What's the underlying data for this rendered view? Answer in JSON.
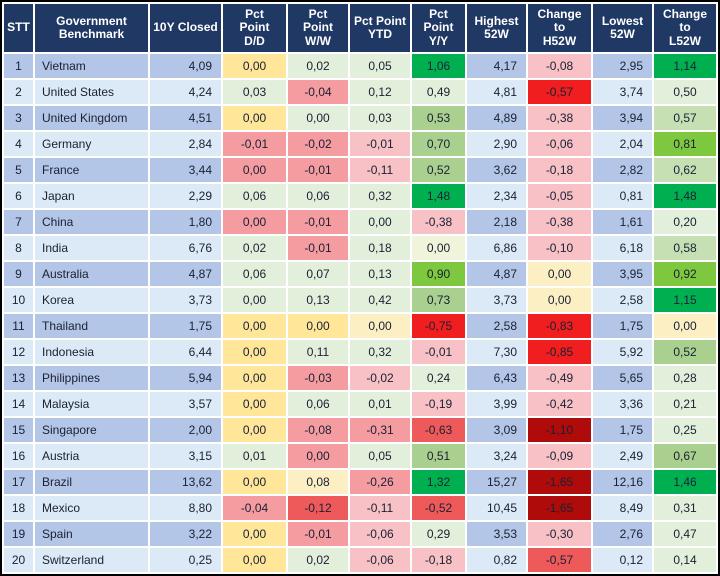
{
  "palette": {
    "header_bg": "#1F3864",
    "header_text": "#FFFFFF",
    "row_odd": "#B3C6E7",
    "row_even": "#DCE9F7",
    "gridline": "#FFFFFF",
    "outer_border": "#000000",
    "text": "#1A2033",
    "yellow": "#FFE699",
    "paleYellow": "#FBEFC3",
    "paleYellowGreen": "#EFF4DB",
    "paleGreen": "#E2EFDA",
    "lightGreen": "#C6E0B4",
    "mediumGreen": "#A9D08E",
    "brightGreen": "#7DC83E",
    "darkGreen": "#00B050",
    "lightPink": "#F7C1C5",
    "midPink": "#F59CA1",
    "medRed": "#EE5A5A",
    "red": "#F01E1E",
    "darkRed": "#B00B0B"
  },
  "chart_data": {
    "type": "table",
    "columns": [
      {
        "key": "stt",
        "label": "STT"
      },
      {
        "key": "name",
        "label": "Government\nBenchmark"
      },
      {
        "key": "closed",
        "label": "10Y Closed"
      },
      {
        "key": "dd",
        "label": "Pct\nPoint\nD/D"
      },
      {
        "key": "ww",
        "label": "Pct\nPoint\nW/W"
      },
      {
        "key": "ytd",
        "label": "Pct Point\nYTD"
      },
      {
        "key": "yy",
        "label": "Pct\nPoint\nY/Y"
      },
      {
        "key": "high",
        "label": "Highest\n52W"
      },
      {
        "key": "chg_h",
        "label": "Change\nto\nH52W"
      },
      {
        "key": "low",
        "label": "Lowest\n52W"
      },
      {
        "key": "chg_l",
        "label": "Change\nto\nL52W"
      }
    ],
    "rows": [
      {
        "stt": "1",
        "name": "Vietnam",
        "closed": "4,09",
        "dd": {
          "v": "0,00",
          "c": "yellow"
        },
        "ww": {
          "v": "0,02",
          "c": "paleGreen"
        },
        "ytd": {
          "v": "0,05",
          "c": "paleGreen"
        },
        "yy": {
          "v": "1,06",
          "c": "darkGreen"
        },
        "high": "4,17",
        "chg_h": {
          "v": "-0,08",
          "c": "lightPink"
        },
        "low": "2,95",
        "chg_l": {
          "v": "1,14",
          "c": "darkGreen"
        }
      },
      {
        "stt": "2",
        "name": "United States",
        "closed": "4,24",
        "dd": {
          "v": "0,03",
          "c": "paleGreen"
        },
        "ww": {
          "v": "-0,04",
          "c": "midPink"
        },
        "ytd": {
          "v": "0,12",
          "c": "paleGreen"
        },
        "yy": {
          "v": "0,49",
          "c": "paleGreen"
        },
        "high": "4,81",
        "chg_h": {
          "v": "-0,57",
          "c": "red"
        },
        "low": "3,74",
        "chg_l": {
          "v": "0,50",
          "c": "paleGreen"
        }
      },
      {
        "stt": "3",
        "name": "United Kingdom",
        "closed": "4,51",
        "dd": {
          "v": "0,00",
          "c": "yellow"
        },
        "ww": {
          "v": "0,00",
          "c": "paleGreen"
        },
        "ytd": {
          "v": "0,03",
          "c": "paleGreen"
        },
        "yy": {
          "v": "0,53",
          "c": "mediumGreen"
        },
        "high": "4,89",
        "chg_h": {
          "v": "-0,38",
          "c": "lightPink"
        },
        "low": "3,94",
        "chg_l": {
          "v": "0,57",
          "c": "lightGreen"
        }
      },
      {
        "stt": "4",
        "name": "Germany",
        "closed": "2,84",
        "dd": {
          "v": "-0,01",
          "c": "midPink"
        },
        "ww": {
          "v": "-0,02",
          "c": "midPink"
        },
        "ytd": {
          "v": "-0,01",
          "c": "lightPink"
        },
        "yy": {
          "v": "0,70",
          "c": "mediumGreen"
        },
        "high": "2,90",
        "chg_h": {
          "v": "-0,06",
          "c": "lightPink"
        },
        "low": "2,04",
        "chg_l": {
          "v": "0,81",
          "c": "brightGreen"
        }
      },
      {
        "stt": "5",
        "name": "France",
        "closed": "3,44",
        "dd": {
          "v": "0,00",
          "c": "midPink"
        },
        "ww": {
          "v": "-0,01",
          "c": "midPink"
        },
        "ytd": {
          "v": "-0,11",
          "c": "lightPink"
        },
        "yy": {
          "v": "0,52",
          "c": "mediumGreen"
        },
        "high": "3,62",
        "chg_h": {
          "v": "-0,18",
          "c": "lightPink"
        },
        "low": "2,82",
        "chg_l": {
          "v": "0,62",
          "c": "lightGreen"
        }
      },
      {
        "stt": "6",
        "name": "Japan",
        "closed": "2,29",
        "dd": {
          "v": "0,06",
          "c": "paleGreen"
        },
        "ww": {
          "v": "0,06",
          "c": "paleGreen"
        },
        "ytd": {
          "v": "0,32",
          "c": "paleGreen"
        },
        "yy": {
          "v": "1,48",
          "c": "darkGreen"
        },
        "high": "2,34",
        "chg_h": {
          "v": "-0,05",
          "c": "lightPink"
        },
        "low": "0,81",
        "chg_l": {
          "v": "1,48",
          "c": "darkGreen"
        }
      },
      {
        "stt": "7",
        "name": "China",
        "closed": "1,80",
        "dd": {
          "v": "0,00",
          "c": "midPink"
        },
        "ww": {
          "v": "-0,01",
          "c": "midPink"
        },
        "ytd": {
          "v": "0,00",
          "c": "paleGreen"
        },
        "yy": {
          "v": "-0,38",
          "c": "lightPink"
        },
        "high": "2,18",
        "chg_h": {
          "v": "-0,38",
          "c": "lightPink"
        },
        "low": "1,61",
        "chg_l": {
          "v": "0,20",
          "c": "paleGreen"
        }
      },
      {
        "stt": "8",
        "name": "India",
        "closed": "6,76",
        "dd": {
          "v": "0,02",
          "c": "paleGreen"
        },
        "ww": {
          "v": "-0,01",
          "c": "midPink"
        },
        "ytd": {
          "v": "0,18",
          "c": "paleGreen"
        },
        "yy": {
          "v": "0,00",
          "c": "paleYellowGreen"
        },
        "high": "6,86",
        "chg_h": {
          "v": "-0,10",
          "c": "lightPink"
        },
        "low": "6,18",
        "chg_l": {
          "v": "0,58",
          "c": "lightGreen"
        }
      },
      {
        "stt": "9",
        "name": "Australia",
        "closed": "4,87",
        "dd": {
          "v": "0,06",
          "c": "paleGreen"
        },
        "ww": {
          "v": "0,07",
          "c": "paleGreen"
        },
        "ytd": {
          "v": "0,13",
          "c": "paleGreen"
        },
        "yy": {
          "v": "0,90",
          "c": "brightGreen"
        },
        "high": "4,87",
        "chg_h": {
          "v": "0,00",
          "c": "paleYellow"
        },
        "low": "3,95",
        "chg_l": {
          "v": "0,92",
          "c": "brightGreen"
        }
      },
      {
        "stt": "10",
        "name": "Korea",
        "closed": "3,73",
        "dd": {
          "v": "0,00",
          "c": "paleGreen"
        },
        "ww": {
          "v": "0,13",
          "c": "paleGreen"
        },
        "ytd": {
          "v": "0,42",
          "c": "paleGreen"
        },
        "yy": {
          "v": "0,73",
          "c": "mediumGreen"
        },
        "high": "3,73",
        "chg_h": {
          "v": "0,00",
          "c": "paleYellow"
        },
        "low": "2,58",
        "chg_l": {
          "v": "1,15",
          "c": "darkGreen"
        }
      },
      {
        "stt": "11",
        "name": "Thailand",
        "closed": "1,75",
        "dd": {
          "v": "0,00",
          "c": "yellow"
        },
        "ww": {
          "v": "0,00",
          "c": "yellow"
        },
        "ytd": {
          "v": "0,00",
          "c": "paleYellow"
        },
        "yy": {
          "v": "-0,75",
          "c": "red"
        },
        "high": "2,58",
        "chg_h": {
          "v": "-0,83",
          "c": "red"
        },
        "low": "1,75",
        "chg_l": {
          "v": "0,00",
          "c": "paleYellow"
        }
      },
      {
        "stt": "12",
        "name": "Indonesia",
        "closed": "6,44",
        "dd": {
          "v": "0,00",
          "c": "yellow"
        },
        "ww": {
          "v": "0,11",
          "c": "paleGreen"
        },
        "ytd": {
          "v": "0,32",
          "c": "paleGreen"
        },
        "yy": {
          "v": "-0,01",
          "c": "lightPink"
        },
        "high": "7,30",
        "chg_h": {
          "v": "-0,85",
          "c": "red"
        },
        "low": "5,92",
        "chg_l": {
          "v": "0,52",
          "c": "mediumGreen"
        }
      },
      {
        "stt": "13",
        "name": "Philippines",
        "closed": "5,94",
        "dd": {
          "v": "0,00",
          "c": "yellow"
        },
        "ww": {
          "v": "-0,03",
          "c": "midPink"
        },
        "ytd": {
          "v": "-0,02",
          "c": "lightPink"
        },
        "yy": {
          "v": "0,24",
          "c": "paleGreen"
        },
        "high": "6,43",
        "chg_h": {
          "v": "-0,49",
          "c": "lightPink"
        },
        "low": "5,65",
        "chg_l": {
          "v": "0,28",
          "c": "paleGreen"
        }
      },
      {
        "stt": "14",
        "name": "Malaysia",
        "closed": "3,57",
        "dd": {
          "v": "0,00",
          "c": "yellow"
        },
        "ww": {
          "v": "0,06",
          "c": "paleGreen"
        },
        "ytd": {
          "v": "0,01",
          "c": "paleGreen"
        },
        "yy": {
          "v": "-0,19",
          "c": "lightPink"
        },
        "high": "3,99",
        "chg_h": {
          "v": "-0,42",
          "c": "lightPink"
        },
        "low": "3,36",
        "chg_l": {
          "v": "0,21",
          "c": "paleGreen"
        }
      },
      {
        "stt": "15",
        "name": "Singapore",
        "closed": "2,00",
        "dd": {
          "v": "0,00",
          "c": "yellow"
        },
        "ww": {
          "v": "-0,08",
          "c": "midPink"
        },
        "ytd": {
          "v": "-0,31",
          "c": "midPink"
        },
        "yy": {
          "v": "-0,63",
          "c": "medRed"
        },
        "high": "3,09",
        "chg_h": {
          "v": "-1,10",
          "c": "darkRed"
        },
        "low": "1,75",
        "chg_l": {
          "v": "0,25",
          "c": "paleGreen"
        }
      },
      {
        "stt": "16",
        "name": "Austria",
        "closed": "3,15",
        "dd": {
          "v": "0,01",
          "c": "paleGreen"
        },
        "ww": {
          "v": "0,00",
          "c": "midPink"
        },
        "ytd": {
          "v": "0,05",
          "c": "paleGreen"
        },
        "yy": {
          "v": "0,51",
          "c": "mediumGreen"
        },
        "high": "3,24",
        "chg_h": {
          "v": "-0,09",
          "c": "lightPink"
        },
        "low": "2,49",
        "chg_l": {
          "v": "0,67",
          "c": "mediumGreen"
        }
      },
      {
        "stt": "17",
        "name": "Brazil",
        "closed": "13,62",
        "dd": {
          "v": "0,00",
          "c": "yellow"
        },
        "ww": {
          "v": "0,08",
          "c": "paleYellow"
        },
        "ytd": {
          "v": "-0,26",
          "c": "midPink"
        },
        "yy": {
          "v": "1,32",
          "c": "darkGreen"
        },
        "high": "15,27",
        "chg_h": {
          "v": "-1,65",
          "c": "darkRed"
        },
        "low": "12,16",
        "chg_l": {
          "v": "1,46",
          "c": "darkGreen"
        }
      },
      {
        "stt": "18",
        "name": "Mexico",
        "closed": "8,80",
        "dd": {
          "v": "-0,04",
          "c": "midPink"
        },
        "ww": {
          "v": "-0,12",
          "c": "medRed"
        },
        "ytd": {
          "v": "-0,11",
          "c": "lightPink"
        },
        "yy": {
          "v": "-0,52",
          "c": "medRed"
        },
        "high": "10,45",
        "chg_h": {
          "v": "-1,65",
          "c": "darkRed"
        },
        "low": "8,49",
        "chg_l": {
          "v": "0,31",
          "c": "paleGreen"
        }
      },
      {
        "stt": "19",
        "name": "Spain",
        "closed": "3,22",
        "dd": {
          "v": "0,00",
          "c": "yellow"
        },
        "ww": {
          "v": "-0,01",
          "c": "midPink"
        },
        "ytd": {
          "v": "-0,06",
          "c": "lightPink"
        },
        "yy": {
          "v": "0,29",
          "c": "paleGreen"
        },
        "high": "3,53",
        "chg_h": {
          "v": "-0,30",
          "c": "lightPink"
        },
        "low": "2,76",
        "chg_l": {
          "v": "0,47",
          "c": "paleGreen"
        }
      },
      {
        "stt": "20",
        "name": "Switzerland",
        "closed": "0,25",
        "dd": {
          "v": "0,00",
          "c": "yellow"
        },
        "ww": {
          "v": "0,02",
          "c": "paleGreen"
        },
        "ytd": {
          "v": "-0,06",
          "c": "lightPink"
        },
        "yy": {
          "v": "-0,18",
          "c": "lightPink"
        },
        "high": "0,82",
        "chg_h": {
          "v": "-0,57",
          "c": "medRed"
        },
        "low": "0,12",
        "chg_l": {
          "v": "0,14",
          "c": "paleGreen"
        }
      }
    ]
  }
}
